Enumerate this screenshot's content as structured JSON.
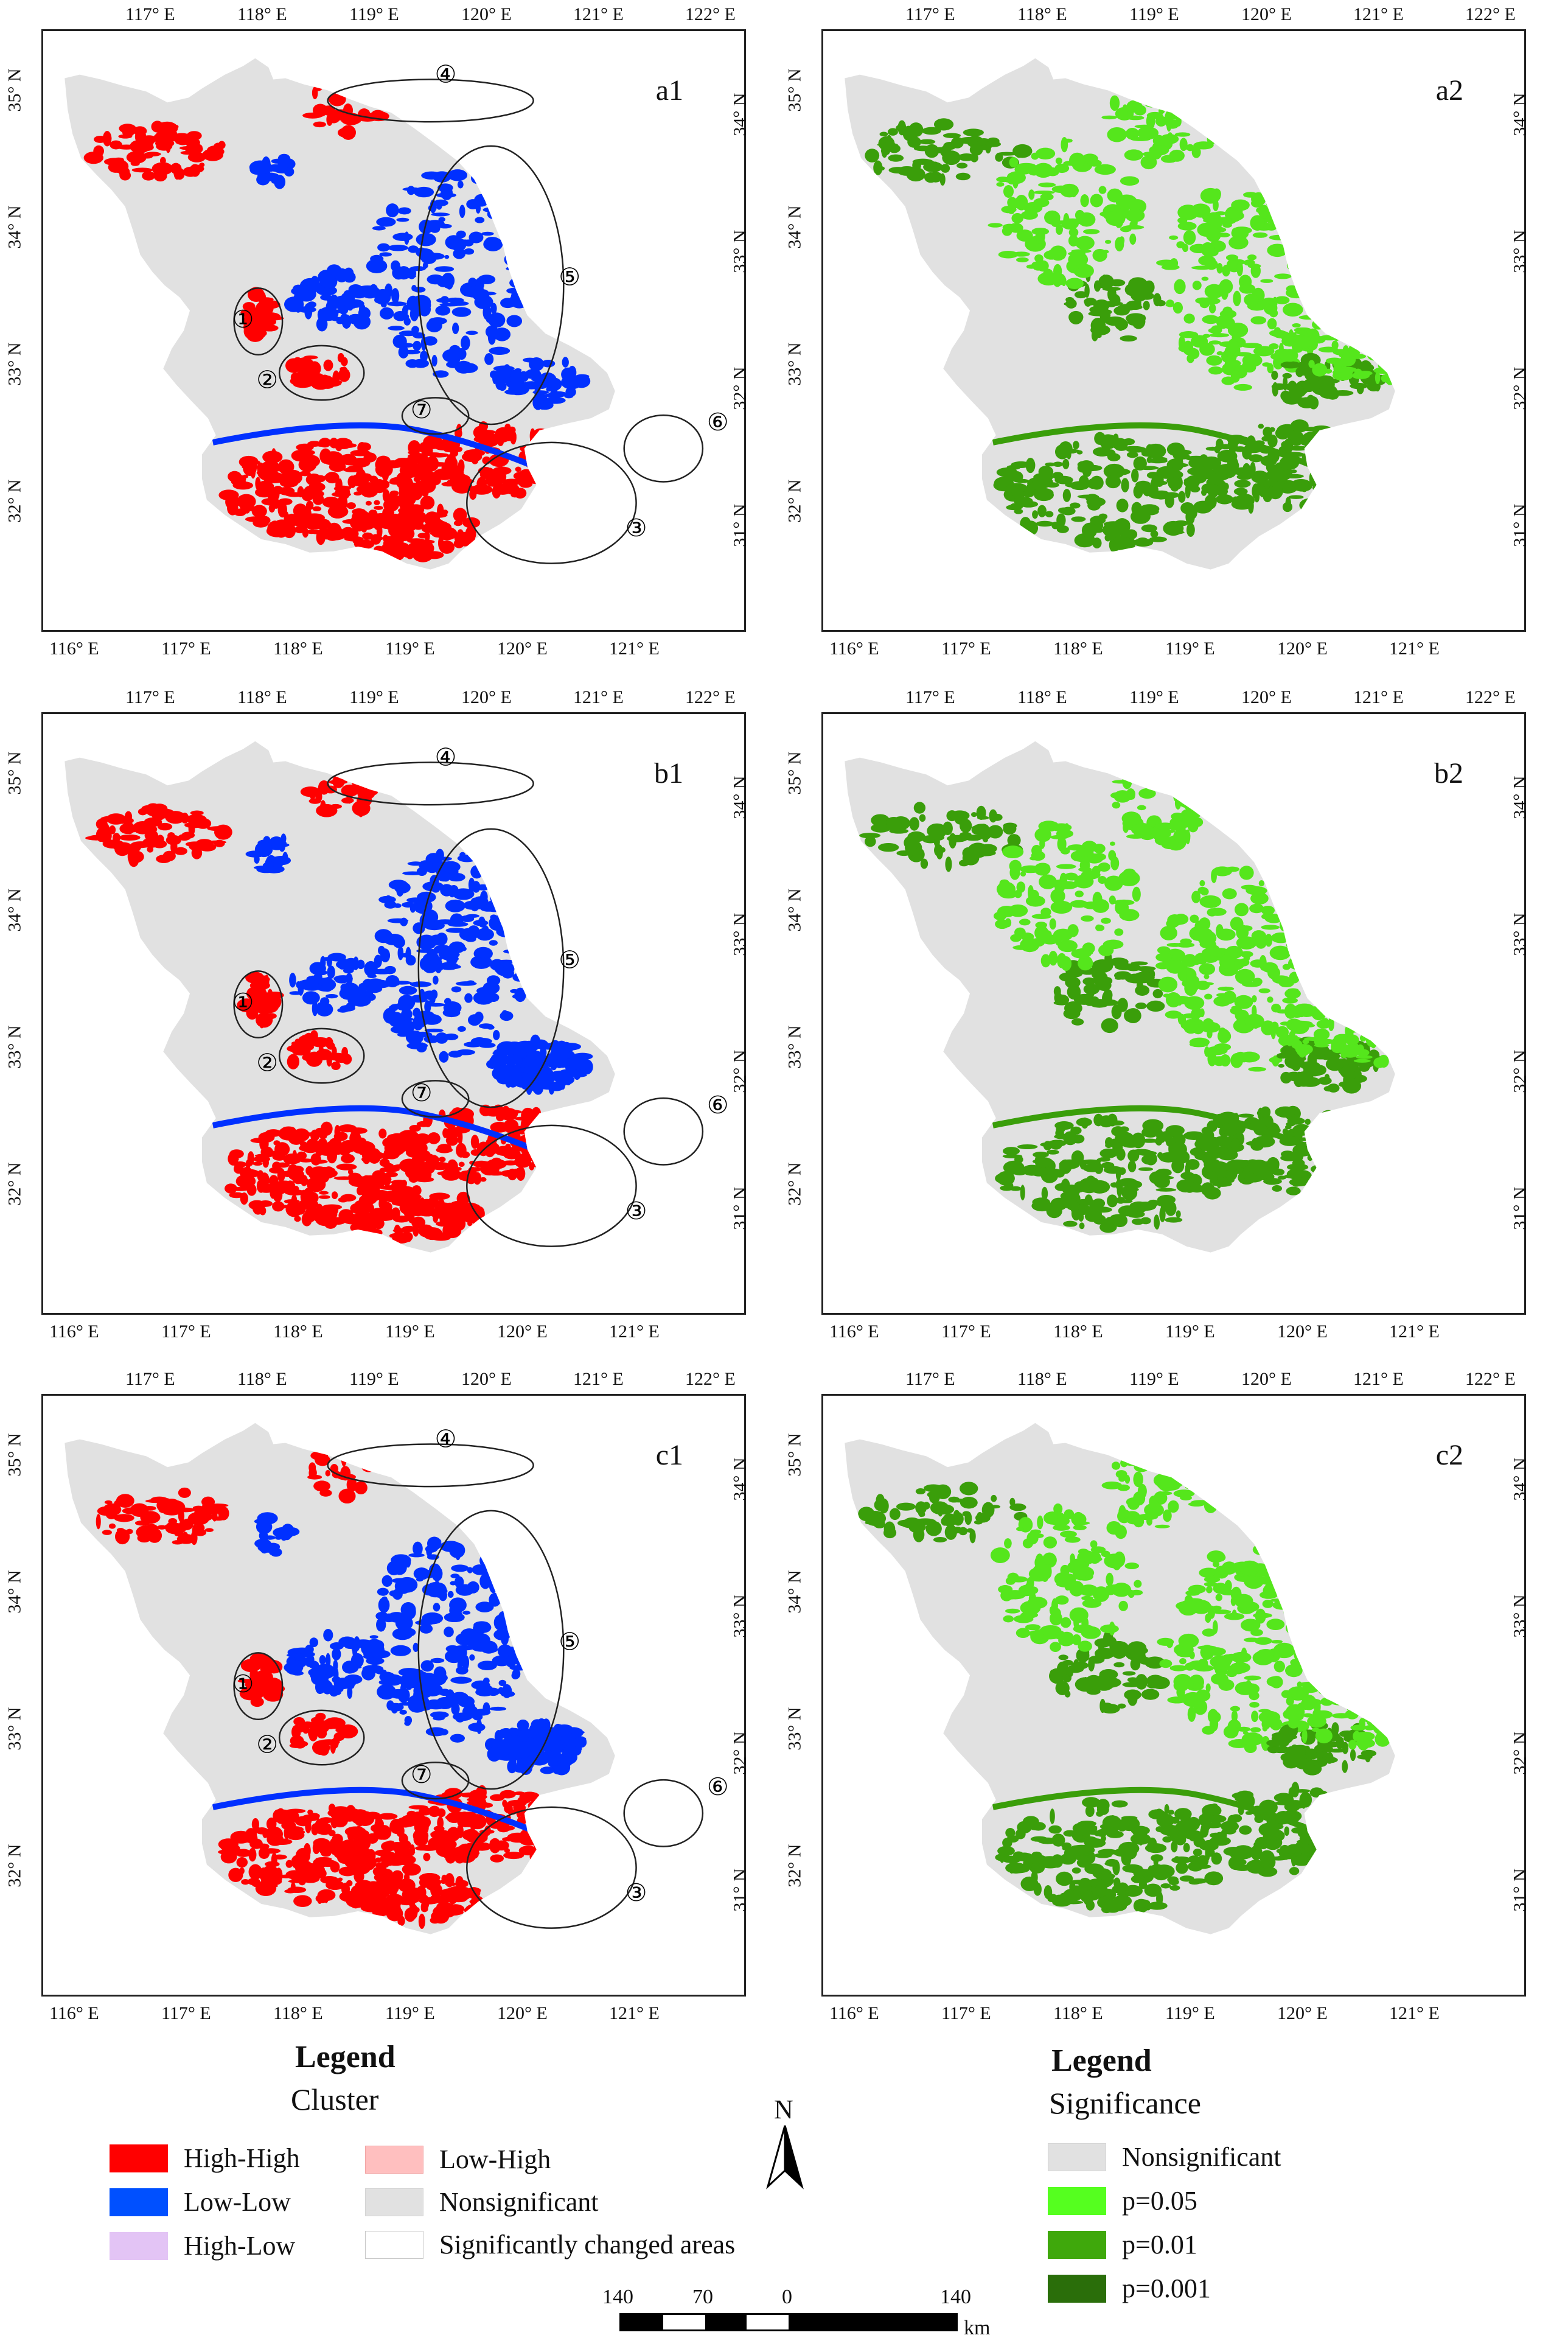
{
  "panels": [
    {
      "id": "a1",
      "kind": "cluster"
    },
    {
      "id": "a2",
      "kind": "significance"
    },
    {
      "id": "b1",
      "kind": "cluster"
    },
    {
      "id": "b2",
      "kind": "significance"
    },
    {
      "id": "c1",
      "kind": "cluster"
    },
    {
      "id": "c2",
      "kind": "significance"
    }
  ],
  "annotations": [
    "①",
    "②",
    "③",
    "④",
    "⑤",
    "⑥",
    "⑦"
  ],
  "ticks": {
    "top_lon": [
      "117° E",
      "118° E",
      "119° E",
      "120° E",
      "121° E",
      "122° E"
    ],
    "bottom_lon": [
      "116° E",
      "117° E",
      "118° E",
      "119° E",
      "120° E",
      "121° E"
    ],
    "left_lat": [
      "35° N",
      "34° N",
      "33° N",
      "32° N"
    ],
    "right_lat": [
      "34° N",
      "33° N",
      "32° N",
      "31° N"
    ]
  },
  "legend_cluster": {
    "title": "Legend",
    "subtitle": "Cluster",
    "items": [
      {
        "label": "High-High",
        "color": "#ff0000"
      },
      {
        "label": "Low-Low",
        "color": "#0050ff"
      },
      {
        "label": "High-Low",
        "color": "#e3c4f5"
      },
      {
        "label": "Low-High",
        "color": "#ffbfbf"
      },
      {
        "label": "Nonsignificant",
        "color": "#e1e1e1"
      },
      {
        "label": "Significantly changed areas",
        "color": "#ffffff"
      }
    ]
  },
  "legend_significance": {
    "title": "Legend",
    "subtitle": "Significance",
    "items": [
      {
        "label": "Nonsignificant",
        "color": "#e1e1e1"
      },
      {
        "label": "p=0.05",
        "color": "#55ff1f"
      },
      {
        "label": "p=0.01",
        "color": "#3fa80c"
      },
      {
        "label": "p=0.001",
        "color": "#2a6e0a"
      }
    ]
  },
  "north_arrow": "N",
  "scalebar": {
    "labels": [
      "140",
      "70",
      "0",
      "140"
    ],
    "unit": "km"
  },
  "colors": {
    "high_high": "#ff0000",
    "low_low": "#0030ff",
    "nonsig": "#e1e1e1",
    "sig_light": "#55e61c",
    "sig_mid": "#3a9e0a",
    "outline": "#222222"
  }
}
